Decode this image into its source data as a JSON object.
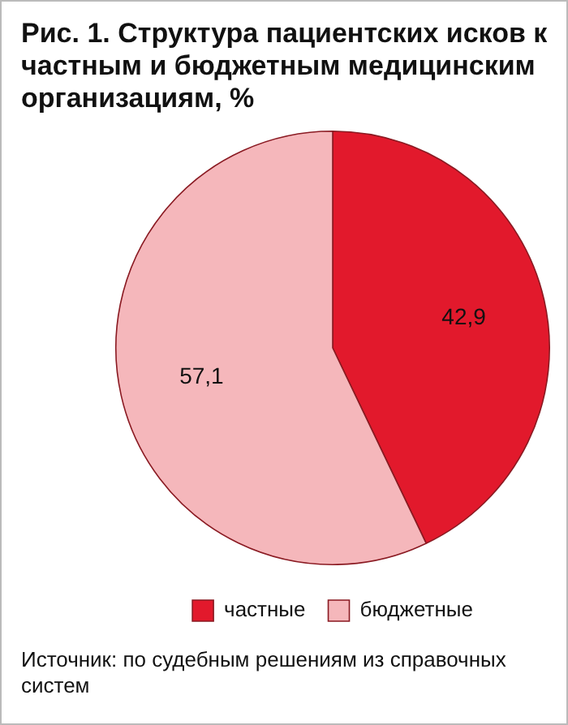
{
  "chart_data": {
    "type": "pie",
    "title": "Рис. 1. Структура пациентских исков к частным и бюджетным медицинским организациям, %",
    "categories": [
      "частные",
      "бюджетные"
    ],
    "values": [
      42.9,
      57.1
    ],
    "value_labels": [
      "42,9",
      "57,1"
    ],
    "colors": [
      "#e2192c",
      "#f5b7bb"
    ],
    "legend": "bottom",
    "annotations": [
      "Источник: по судебным решениям из справочных систем"
    ]
  }
}
